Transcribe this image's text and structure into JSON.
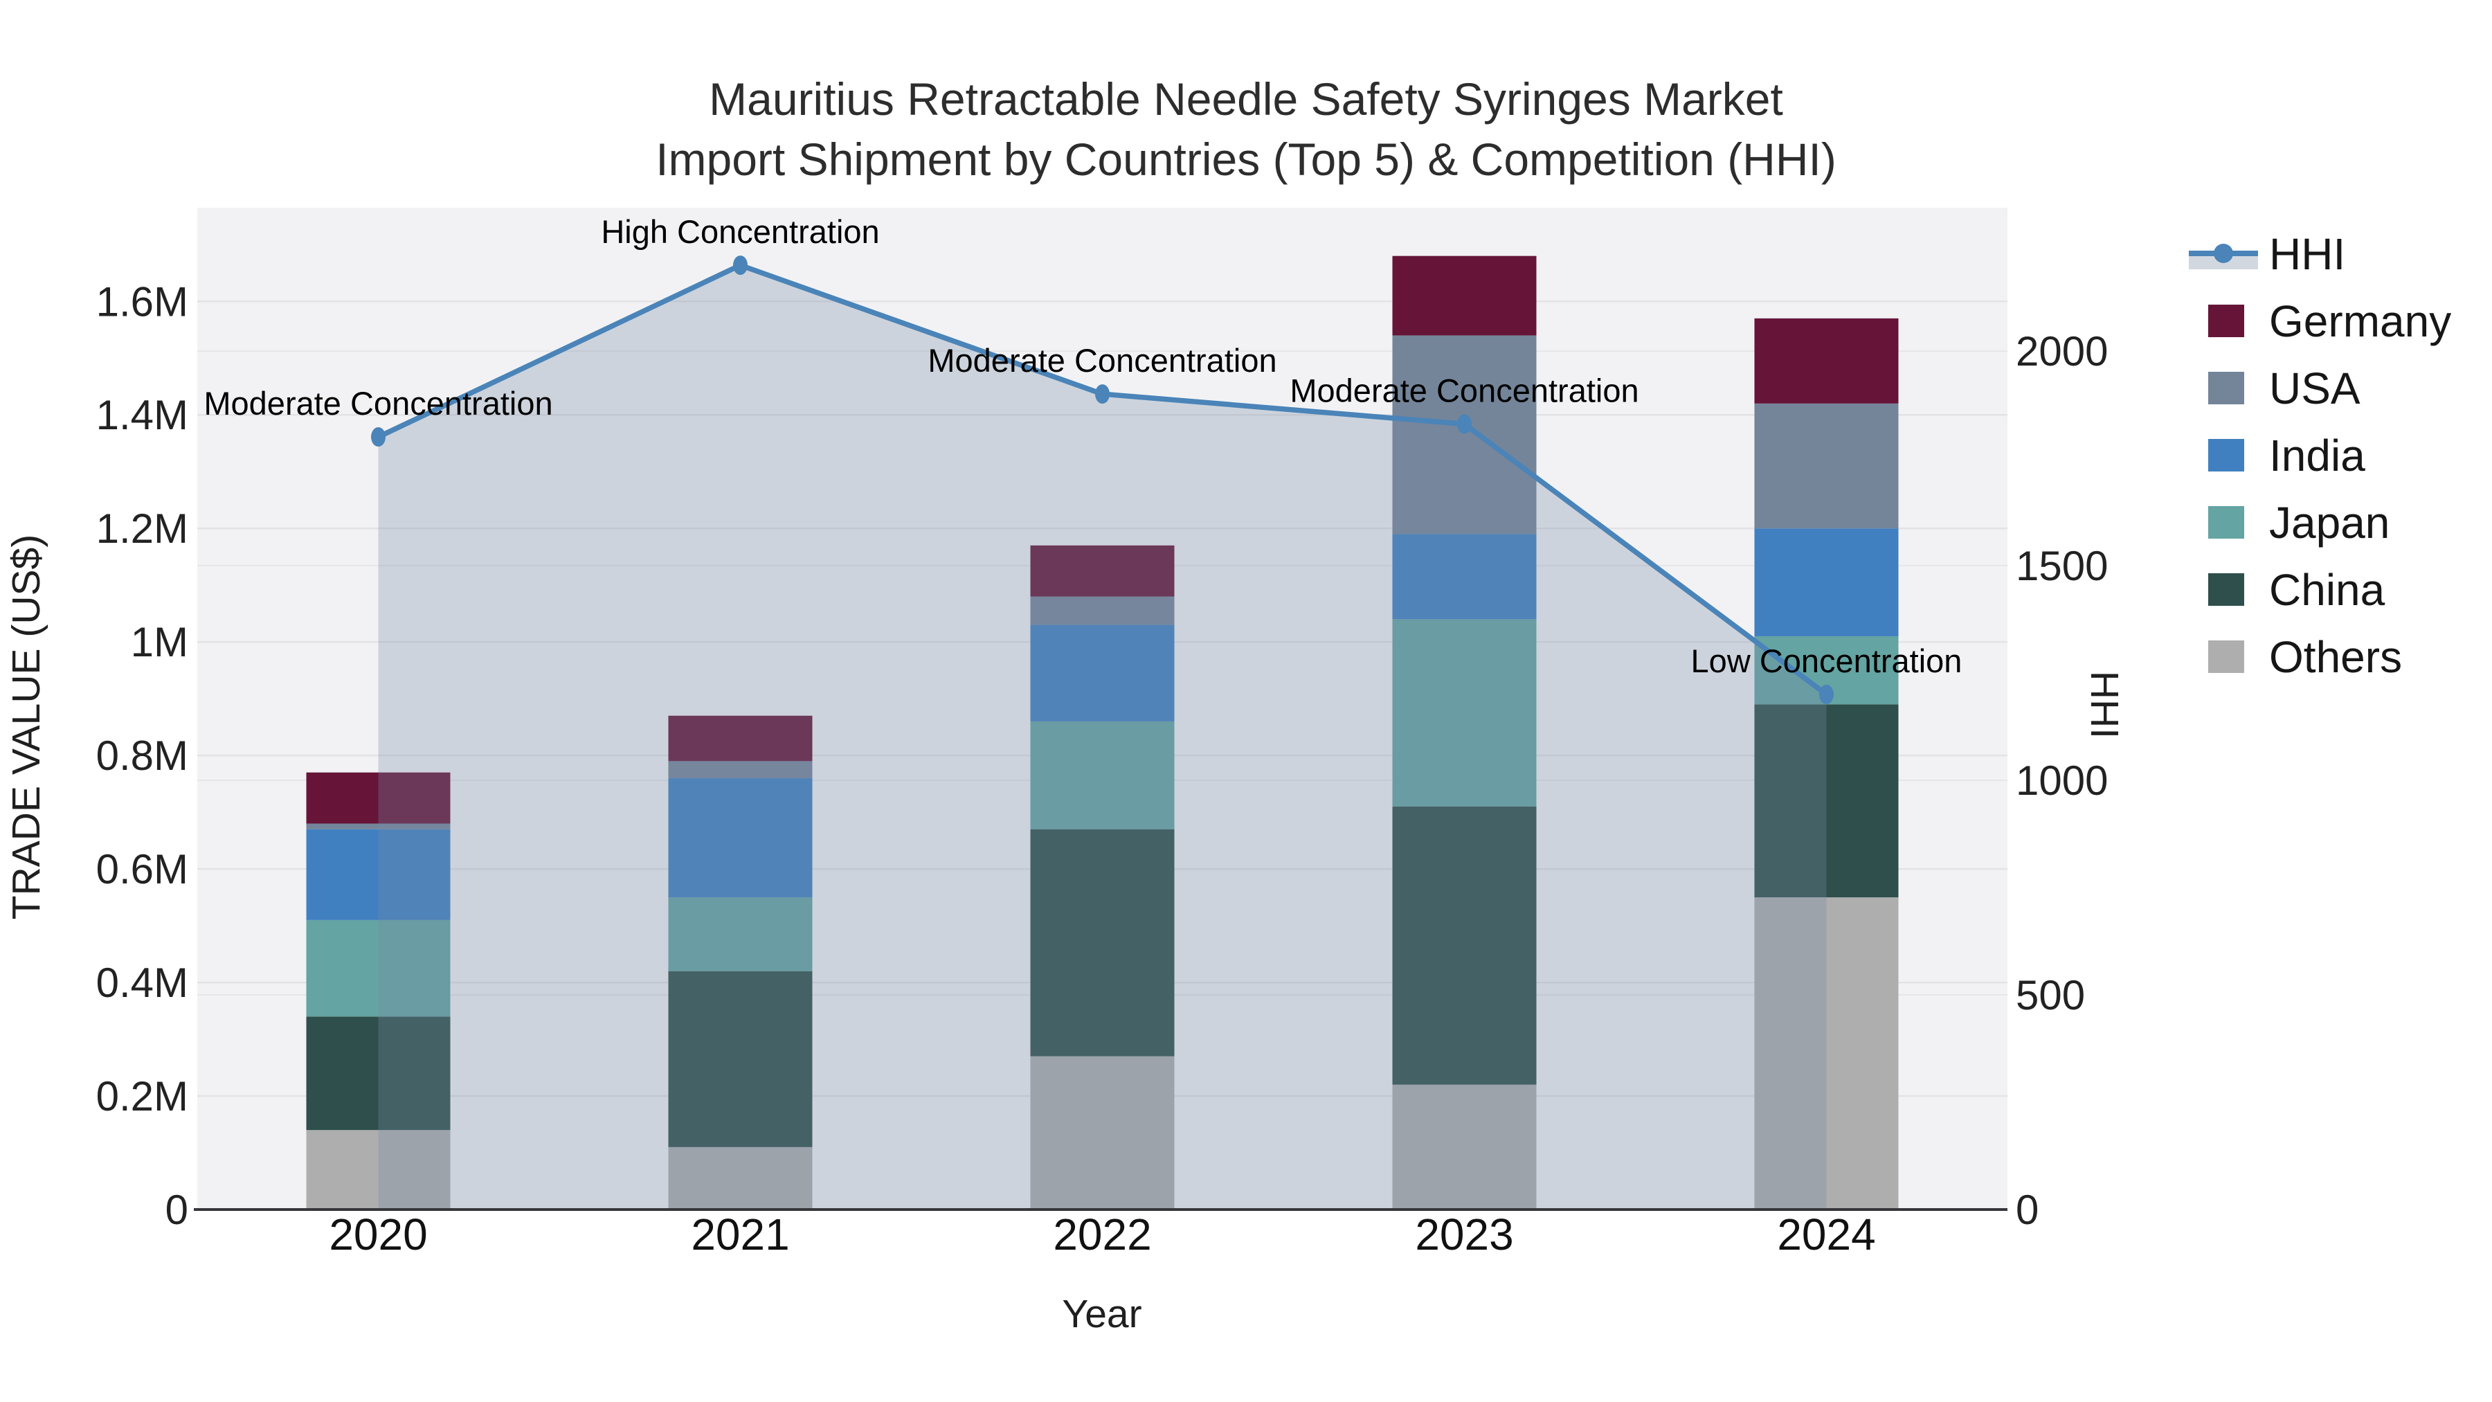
{
  "title": {
    "line1": "Mauritius Retractable Needle Safety Syringes Market",
    "line2": "Import Shipment by Countries (Top 5) & Competition (HHI)"
  },
  "axes": {
    "x_title": "Year",
    "y_left_title": "TRADE VALUE (US$)",
    "y_right_title": "HHI",
    "y_left_tick_labels": [
      "0",
      "0.2M",
      "0.4M",
      "0.6M",
      "0.8M",
      "1M",
      "1.2M",
      "1.4M",
      "1.6M"
    ],
    "y_right_tick_labels": [
      "0",
      "500",
      "1000",
      "1500",
      "2000"
    ]
  },
  "legend": {
    "items": [
      {
        "label": "HHI",
        "type": "line",
        "color": "#4a84b8",
        "band": "#d2d8e0"
      },
      {
        "label": "Germany",
        "type": "swatch",
        "color": "#661539"
      },
      {
        "label": "USA",
        "type": "swatch",
        "color": "#74859a"
      },
      {
        "label": "India",
        "type": "swatch",
        "color": "#4080c0"
      },
      {
        "label": "Japan",
        "type": "swatch",
        "color": "#64a4a2"
      },
      {
        "label": "China",
        "type": "swatch",
        "color": "#2e4f4b"
      },
      {
        "label": "Others",
        "type": "swatch",
        "color": "#aeaeae"
      }
    ]
  },
  "chart_data": {
    "type": "bar+line",
    "title": "Mauritius Retractable Needle Safety Syringes Market Import Shipment by Countries (Top 5) & Competition (HHI)",
    "xlabel": "Year",
    "ylabel_left": "TRADE VALUE (US$)",
    "ylabel_right": "HHI",
    "categories": [
      "2020",
      "2021",
      "2022",
      "2023",
      "2024"
    ],
    "bar_unit": "million US$",
    "stack_order_bottom_to_top": [
      "Others",
      "China",
      "Japan",
      "India",
      "USA",
      "Germany"
    ],
    "series": [
      {
        "name": "Others",
        "color": "#aeaeae",
        "values": [
          0.14,
          0.11,
          0.27,
          0.22,
          0.55
        ]
      },
      {
        "name": "China",
        "color": "#2e4f4b",
        "values": [
          0.2,
          0.31,
          0.4,
          0.49,
          0.34
        ]
      },
      {
        "name": "Japan",
        "color": "#64a4a2",
        "values": [
          0.17,
          0.13,
          0.19,
          0.33,
          0.12
        ]
      },
      {
        "name": "India",
        "color": "#4080c0",
        "values": [
          0.16,
          0.21,
          0.17,
          0.15,
          0.19
        ]
      },
      {
        "name": "USA",
        "color": "#74859a",
        "values": [
          0.01,
          0.03,
          0.05,
          0.35,
          0.22
        ]
      },
      {
        "name": "Germany",
        "color": "#661539",
        "values": [
          0.09,
          0.08,
          0.09,
          0.14,
          0.15
        ]
      }
    ],
    "bar_totals": [
      0.77,
      0.87,
      1.17,
      1.68,
      1.57
    ],
    "hhi": {
      "name": "HHI",
      "color": "#4a84b8",
      "area_fill": "rgba(118,138,164,0.30)",
      "values": [
        1800,
        2200,
        1900,
        1830,
        1200
      ],
      "annotations": [
        "Moderate Concentration",
        "High Concentration",
        "Moderate Concentration",
        "Moderate Concentration",
        "Low Concentration"
      ]
    },
    "y_left_axis": {
      "ticks": [
        0,
        0.2,
        0.4,
        0.6,
        0.8,
        1.0,
        1.2,
        1.4,
        1.6
      ],
      "range": [
        0,
        1.765
      ]
    },
    "y_right_axis": {
      "ticks": [
        0,
        500,
        1000,
        1500,
        2000
      ],
      "range": [
        0,
        2334
      ]
    },
    "grid": true,
    "legend_position": "right",
    "plot_background": "#f2f2f4"
  }
}
